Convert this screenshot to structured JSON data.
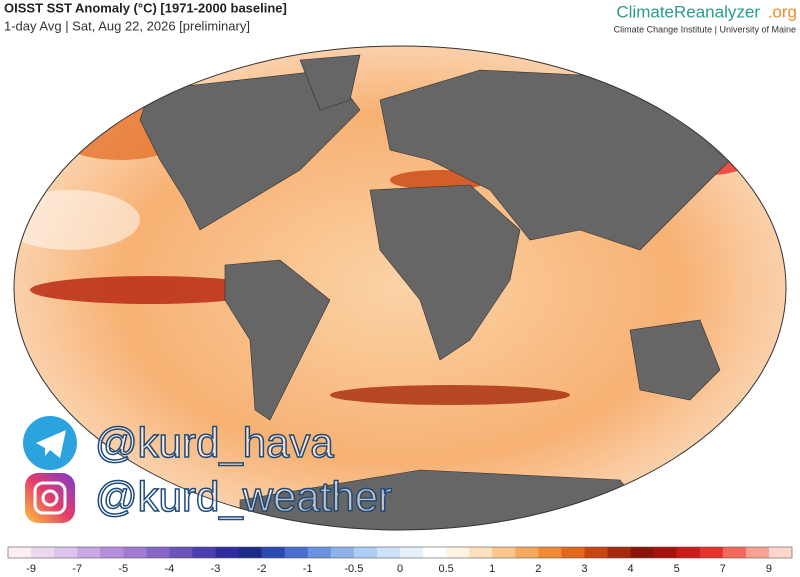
{
  "header": {
    "title": "OISST SST Anomaly (°C) [1971-2000 baseline]",
    "subtitle": "1-day Avg | Sat, Aug 22, 2026 [preliminary]"
  },
  "brand": {
    "name": "ClimateReanalyzer",
    "domain": ".org",
    "tagline": "Climate Change Institute | University of Maine"
  },
  "watermark": {
    "telegram": "@kurd_hava",
    "instagram": "@kurd_weather"
  },
  "legend": {
    "ticks": [
      -9,
      -7,
      -5,
      -4,
      -3,
      -2,
      -1,
      -0.5,
      0,
      0.5,
      1,
      2,
      3,
      4,
      5,
      7,
      9
    ],
    "colors": [
      "#fbeef5",
      "#ecd9f0",
      "#dcc4ec",
      "#c9a8e3",
      "#b58ddb",
      "#a27ad2",
      "#8667c7",
      "#6a54ba",
      "#4b3fae",
      "#2f2d9e",
      "#1c2b8a",
      "#2a4ab0",
      "#4a6ed0",
      "#6b92e0",
      "#8db2ea",
      "#aecdf2",
      "#cde2f8",
      "#e6f0fb",
      "#ffffff",
      "#fff3e2",
      "#fde0bc",
      "#fbc68e",
      "#f7a95f",
      "#f08a37",
      "#e2681e",
      "#c94612",
      "#a62a0c",
      "#8a1408",
      "#a8120c",
      "#cc1a16",
      "#e8312c",
      "#f36a5c",
      "#f8a292",
      "#fdd6cc"
    ]
  }
}
